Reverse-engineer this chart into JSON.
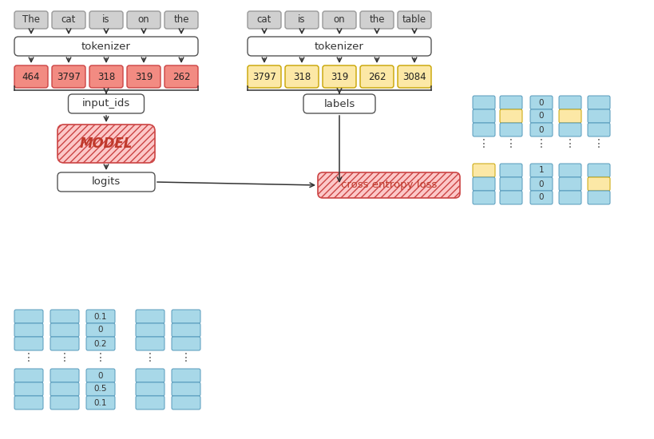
{
  "bg_color": "#ffffff",
  "gray_fill": "#d0d0d0",
  "red_fill": "#f28b82",
  "red_hatch_fill": "#fcc8c8",
  "yellow_fill": "#fce8a6",
  "blue_fill": "#a8d8e8",
  "white_fill": "#ffffff",
  "input_words": [
    "The",
    "cat",
    "is",
    "on",
    "the"
  ],
  "input_ids": [
    "464",
    "3797",
    "318",
    "319",
    "262"
  ],
  "label_words": [
    "cat",
    "is",
    "on",
    "the",
    "table"
  ],
  "label_ids": [
    "3797",
    "318",
    "319",
    "262",
    "3084"
  ],
  "logits_values_top": [
    "0.1",
    "0",
    "0.2"
  ],
  "logits_values_bot": [
    "0",
    "0.5",
    "0.1"
  ],
  "label_vec_top_text": [
    "0",
    "0",
    "0"
  ],
  "label_vec_bot_text": [
    "1",
    "0",
    "0"
  ]
}
